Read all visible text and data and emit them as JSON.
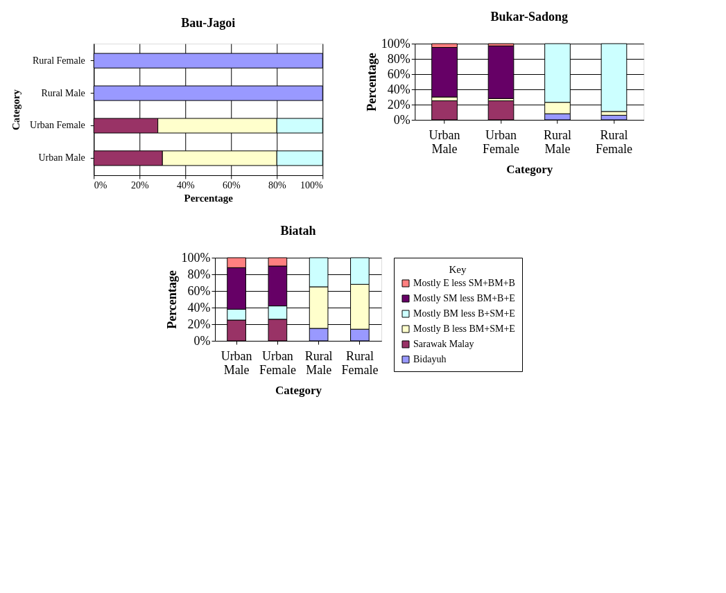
{
  "chart_data": [
    {
      "type": "bar",
      "title": "Bau-Jagoi",
      "xlabel": "Percentage",
      "ylabel": "Category",
      "orientation": "horizontal",
      "stacked": true,
      "grid": "x",
      "legend": false,
      "categories": [
        "Rural Female",
        "Rural Male",
        "Urban Female",
        "Urban Male"
      ],
      "xlim": [
        0,
        100
      ],
      "xticks": [
        {
          "value": 0,
          "label": "0%"
        },
        {
          "value": 20,
          "label": "20%"
        },
        {
          "value": 40,
          "label": "40%"
        },
        {
          "value": 60,
          "label": "60%"
        },
        {
          "value": 80,
          "label": "80%"
        },
        {
          "value": 100,
          "label": "100%"
        }
      ],
      "series": [
        {
          "color": "#9999ff",
          "values": [
            100,
            100,
            null,
            null
          ]
        },
        {
          "color": "#993366",
          "values": [
            null,
            null,
            28,
            30
          ]
        },
        {
          "color": "#ffffcc",
          "values": [
            null,
            null,
            52,
            50
          ]
        },
        {
          "color": "#ccffff",
          "values": [
            null,
            null,
            20,
            20
          ]
        }
      ]
    },
    {
      "type": "bar",
      "title": "Bukar-Sadong",
      "xlabel": "Category",
      "ylabel": "Percentage",
      "stacked": true,
      "grid": "y",
      "legend": false,
      "categories": [
        "Urban Male",
        "Urban Female",
        "Rural Male",
        "Rural Female"
      ],
      "ylim": [
        0,
        100
      ],
      "yticks": [
        {
          "value": 0,
          "label": "0%"
        },
        {
          "value": 20,
          "label": "20%"
        },
        {
          "value": 40,
          "label": "40%"
        },
        {
          "value": 60,
          "label": "60%"
        },
        {
          "value": 80,
          "label": "80%"
        },
        {
          "value": 100,
          "label": "100%"
        }
      ],
      "series": [
        {
          "color": "#9999ff",
          "values": [
            null,
            null,
            8,
            6
          ]
        },
        {
          "color": "#993366",
          "values": [
            25,
            25,
            null,
            null
          ]
        },
        {
          "color": "#ffffcc",
          "values": [
            5,
            3,
            15,
            5
          ]
        },
        {
          "color": "#ccffff",
          "values": [
            null,
            null,
            77,
            89
          ]
        },
        {
          "color": "#660066",
          "values": [
            65,
            69,
            null,
            null
          ]
        },
        {
          "color": "#ff8080",
          "values": [
            5,
            3,
            null,
            null
          ]
        }
      ]
    },
    {
      "type": "bar",
      "title": "Biatah",
      "xlabel": "Category",
      "ylabel": "Percentage",
      "stacked": true,
      "grid": "y",
      "legend": "right",
      "legend_title": "Key",
      "categories": [
        "Urban Male",
        "Urban Female",
        "Rural Male",
        "Rural Female"
      ],
      "ylim": [
        0,
        100
      ],
      "yticks": [
        {
          "value": 0,
          "label": "0%"
        },
        {
          "value": 20,
          "label": "20%"
        },
        {
          "value": 40,
          "label": "40%"
        },
        {
          "value": 60,
          "label": "60%"
        },
        {
          "value": 80,
          "label": "80%"
        },
        {
          "value": 100,
          "label": "100%"
        }
      ],
      "series": [
        {
          "name": "Bidayuh",
          "color": "#9999ff",
          "values": [
            null,
            null,
            15,
            14
          ]
        },
        {
          "name": "Sarawak Malay",
          "color": "#993366",
          "values": [
            25,
            26,
            null,
            null
          ]
        },
        {
          "name": "Mostly B less BM+SM+E",
          "color": "#ffffcc",
          "values": [
            null,
            null,
            50,
            54
          ]
        },
        {
          "name": "Mostly BM less B+SM+E",
          "color": "#ccffff",
          "values": [
            13,
            16,
            35,
            32
          ]
        },
        {
          "name": "Mostly SM less BM+B+E",
          "color": "#660066",
          "values": [
            50,
            48,
            null,
            null
          ]
        },
        {
          "name": "Mostly E less SM+BM+B",
          "color": "#ff8080",
          "values": [
            12,
            10,
            null,
            null
          ]
        }
      ]
    }
  ]
}
